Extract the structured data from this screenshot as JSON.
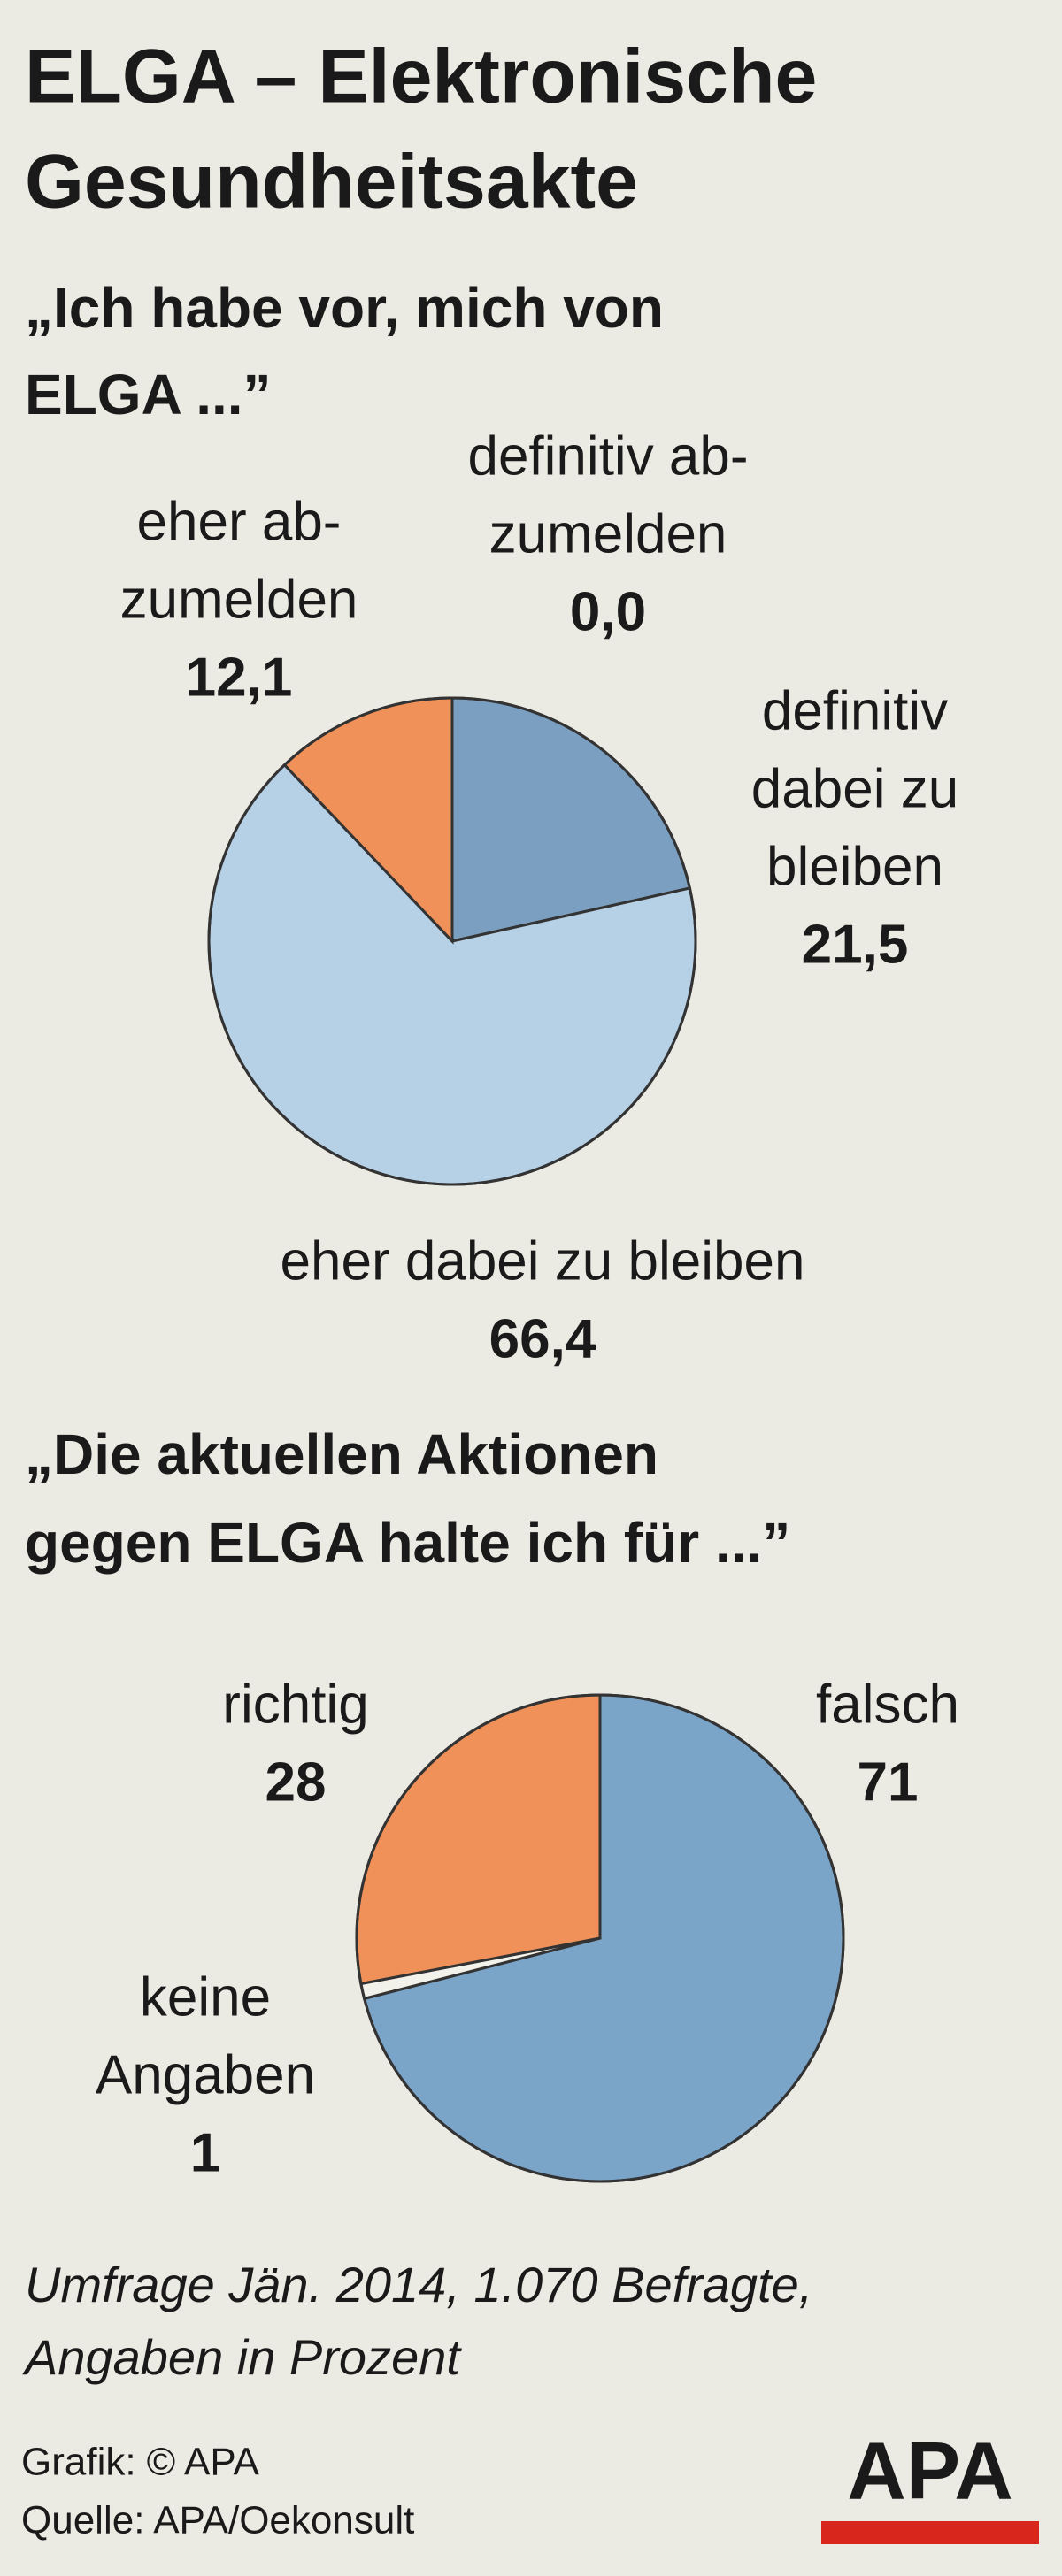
{
  "title": [
    "ELGA – Elektronische",
    "Gesundheitsakte"
  ],
  "chart_data": [
    {
      "type": "pie",
      "subtitle": [
        "„Ich habe vor, mich von",
        "ELGA ...”"
      ],
      "categories": [
        [
          "definitiv",
          "dabei zu",
          "bleiben"
        ],
        [
          "eher dabei zu bleiben"
        ],
        [
          "eher ab-",
          "zumelden"
        ],
        [
          "definitiv ab-",
          "zumelden"
        ]
      ],
      "values": [
        21.5,
        66.4,
        12.1,
        0.0
      ],
      "value_labels": [
        "21,5",
        "66,4",
        "12,1",
        "0,0"
      ],
      "colors": [
        "#7b9fc0",
        "#b6d0e6",
        "#f0915a",
        "#e84a2f"
      ]
    },
    {
      "type": "pie",
      "subtitle": [
        "„Die aktuellen Aktionen",
        "gegen ELGA halte ich für ...”"
      ],
      "categories": [
        [
          "falsch"
        ],
        [
          "keine",
          "Angaben"
        ],
        [
          "richtig"
        ]
      ],
      "values": [
        71,
        1,
        28
      ],
      "colors": [
        "#7ba4c9",
        "#f2f1ea",
        "#f0915a"
      ]
    }
  ],
  "footnote": [
    "Umfrage Jän. 2014, 1.070 Befragte,",
    "Angaben in Prozent"
  ],
  "credit": [
    "Grafik: © APA",
    "Quelle: APA/Oekonsult"
  ],
  "logo": "APA"
}
